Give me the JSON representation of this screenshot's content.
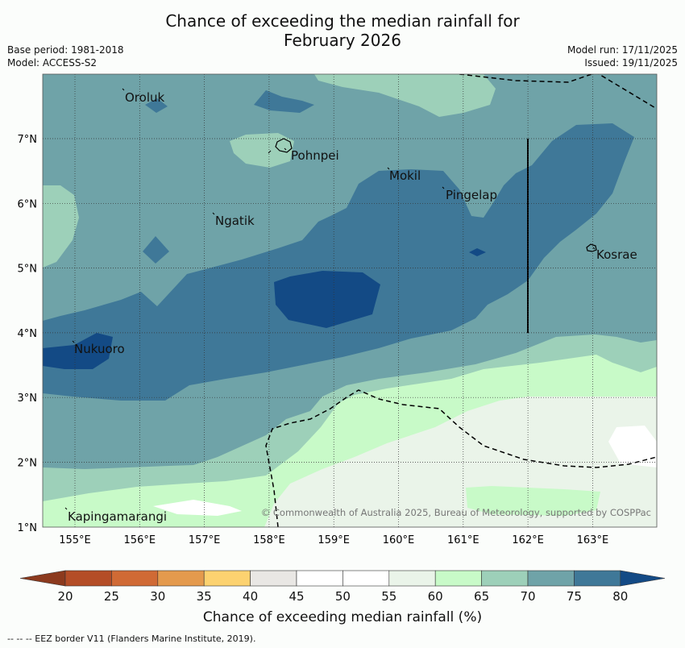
{
  "title": {
    "line1": "Chance of exceeding the median rainfall for",
    "line2": "February 2026"
  },
  "meta": {
    "base_period": "Base period: 1981-2018",
    "model": "Model: ACCESS-S2",
    "model_run": "Model run: 17/11/2025",
    "issued": "Issued: 19/11/2025"
  },
  "map": {
    "x_ticks": [
      "155°E",
      "156°E",
      "157°E",
      "158°E",
      "159°E",
      "160°E",
      "161°E",
      "162°E",
      "163°E"
    ],
    "y_ticks": [
      "7°N",
      "6°N",
      "5°N",
      "4°N",
      "3°N",
      "2°N",
      "1°N"
    ],
    "places": [
      {
        "name": "Oroluk"
      },
      {
        "name": "Pohnpei"
      },
      {
        "name": "Mokil"
      },
      {
        "name": "Pingelap"
      },
      {
        "name": "Ngatik"
      },
      {
        "name": "Kosrae"
      },
      {
        "name": "Nukuoro"
      },
      {
        "name": "Kapingamarangi"
      }
    ],
    "copyright": "© Commonwealth of Australia 2025, Bureau of Meteorology, supported by COSPPac"
  },
  "colorbar": {
    "title": "Chance of exceeding median rainfall (%)",
    "ticks": [
      "20",
      "25",
      "30",
      "35",
      "40",
      "45",
      "50",
      "55",
      "60",
      "65",
      "70",
      "75",
      "80"
    ],
    "colors": {
      "under": "#8c3a1e",
      "c20": "#b44d27",
      "c25": "#d06a35",
      "c30": "#e49a4d",
      "c35": "#fcd270",
      "c40": "#e9e7e4",
      "c45": "#ffffff",
      "c50": "#ffffff",
      "c55": "#eaf4e9",
      "c60": "#c8fac8",
      "c65": "#9dd0b9",
      "c70": "#6fa3a8",
      "c75": "#3f7898",
      "over": "#134a85"
    }
  },
  "footer": "-- -- -- EEZ border V11 (Flanders Marine Institute, 2019)."
}
